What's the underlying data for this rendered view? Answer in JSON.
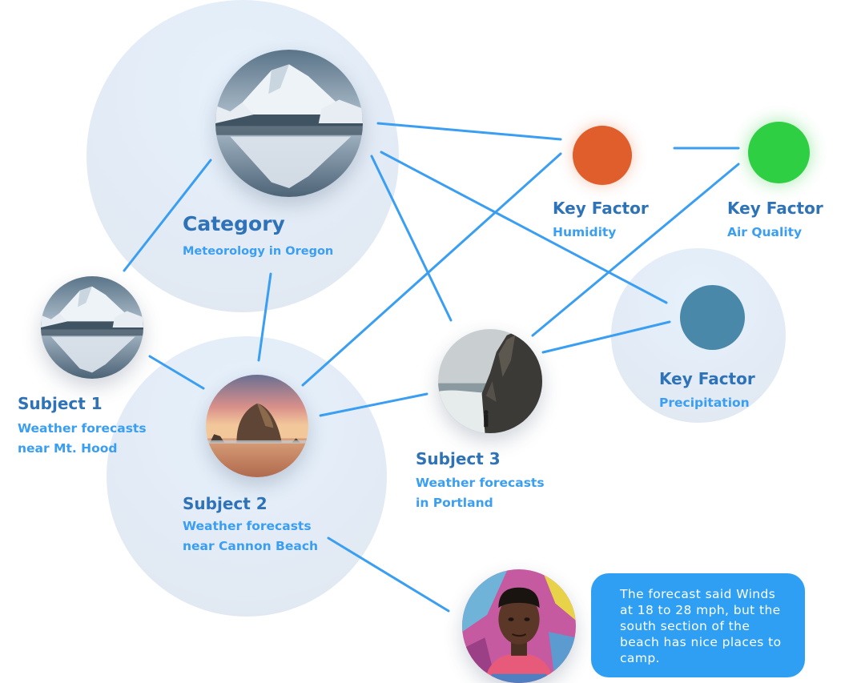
{
  "category": {
    "title": "Category",
    "subtitle": "Meteorology in Oregon"
  },
  "subjects": [
    {
      "title": "Subject 1",
      "subtitle": "Weather forecasts\nnear Mt. Hood"
    },
    {
      "title": "Subject 2",
      "subtitle": "Weather forecasts\nnear Cannon Beach"
    },
    {
      "title": "Subject 3",
      "subtitle": "Weather forecasts\nin Portland"
    }
  ],
  "key_factors": [
    {
      "title": "Key Factor",
      "subtitle": "Humidity",
      "color": "#e05e2b"
    },
    {
      "title": "Key Factor",
      "subtitle": "Air Quality",
      "color": "#2ecf43"
    },
    {
      "title": "Key Factor",
      "subtitle": "Precipitation",
      "color": "#4a88a9"
    }
  ],
  "comment": {
    "text": "The forecast said Winds at 18 to 28 mph, but the south section of the beach has nice places to camp."
  },
  "colors": {
    "link_line": "#3a9ef2",
    "title_text": "#2e72b7",
    "subtitle_text": "#3a9ef2",
    "halo": "#e3ecf6",
    "bubble": "#2f9ff3"
  },
  "images": {
    "category": "mountain-lake-reflection-photo",
    "subject_1": "mountain-lake-reflection-photo",
    "subject_2": "haystack-rock-beach-sunset-photo",
    "subject_3": "coastal-cliff-hiker-photo",
    "commenter": "person-avatar-photo"
  }
}
